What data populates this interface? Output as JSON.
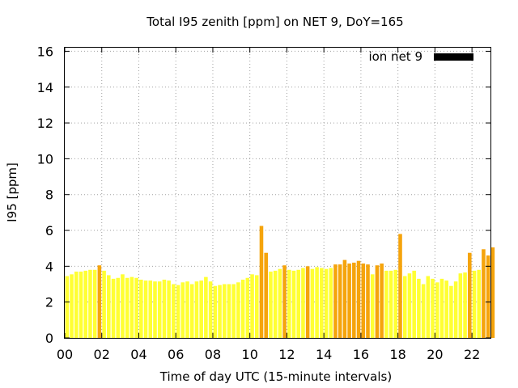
{
  "chart_data": {
    "type": "bar",
    "title": "Total I95 zenith [ppm] on NET 9, DoY=165",
    "xlabel": "Time of day UTC (15-minute intervals)",
    "ylabel": "I95 [ppm]",
    "xlim": [
      0,
      23
    ],
    "ylim": [
      0,
      16.2
    ],
    "xticks": [
      "00",
      "02",
      "04",
      "06",
      "08",
      "10",
      "12",
      "14",
      "16",
      "18",
      "20",
      "22"
    ],
    "yticks": [
      "0",
      "2",
      "4",
      "6",
      "8",
      "10",
      "12",
      "14",
      "16"
    ],
    "grid": true,
    "legend": {
      "position": "top-right",
      "entries": [
        {
          "label": "ion net 9",
          "color": "#000000"
        }
      ]
    },
    "color_scale": {
      "low": "#ffff33",
      "high": "#f5a40c",
      "threshold": 4.0
    },
    "interval_hours": 0.25,
    "values": [
      3.45,
      3.55,
      3.7,
      3.7,
      3.75,
      3.8,
      3.8,
      4.05,
      3.75,
      3.5,
      3.3,
      3.35,
      3.55,
      3.35,
      3.4,
      3.35,
      3.25,
      3.2,
      3.2,
      3.15,
      3.15,
      3.25,
      3.2,
      3.0,
      2.95,
      3.1,
      3.15,
      3.0,
      3.15,
      3.2,
      3.4,
      3.15,
      2.9,
      2.95,
      3.0,
      3.0,
      3.0,
      3.1,
      3.25,
      3.35,
      3.55,
      3.5,
      6.25,
      4.75,
      3.7,
      3.75,
      3.85,
      4.05,
      3.8,
      3.75,
      3.8,
      3.9,
      4.0,
      3.85,
      3.95,
      3.9,
      3.85,
      3.9,
      4.1,
      4.1,
      4.35,
      4.15,
      4.2,
      4.3,
      4.15,
      4.1,
      3.55,
      4.05,
      4.15,
      3.75,
      3.75,
      3.8,
      5.8,
      3.45,
      3.6,
      3.75,
      3.3,
      3.0,
      3.45,
      3.3,
      3.1,
      3.3,
      3.2,
      2.9,
      3.15,
      3.6,
      3.65,
      4.75,
      3.75,
      3.8,
      4.95,
      4.6,
      5.05
    ]
  }
}
